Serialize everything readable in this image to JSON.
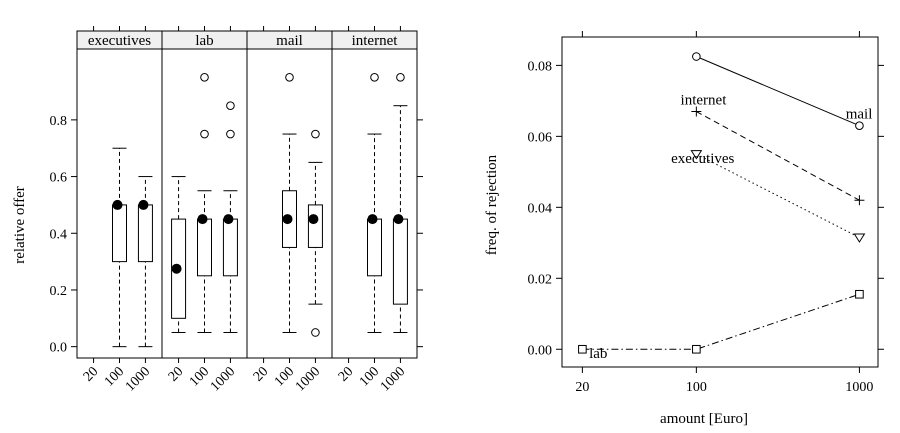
{
  "chart_data": [
    {
      "type": "box",
      "ylabel": "relative offer",
      "xlabel": "",
      "ylim": [
        -0.04,
        1.05
      ],
      "yticks": [
        0.0,
        0.2,
        0.4,
        0.6,
        0.8
      ],
      "ytick_labels": [
        "0.0",
        "0.2",
        "0.4",
        "0.6",
        "0.8"
      ],
      "categories": [
        "20",
        "100",
        "1000"
      ],
      "panels": [
        {
          "name": "executives",
          "boxes": [
            {
              "category": "100",
              "lower_whisker": 0.0,
              "q1": 0.3,
              "median": 0.5,
              "q3": 0.5,
              "upper_whisker": 0.7,
              "outliers": []
            },
            {
              "category": "1000",
              "lower_whisker": 0.0,
              "q1": 0.3,
              "median": 0.5,
              "q3": 0.5,
              "upper_whisker": 0.6,
              "outliers": []
            }
          ]
        },
        {
          "name": "lab",
          "boxes": [
            {
              "category": "20",
              "lower_whisker": 0.05,
              "q1": 0.1,
              "median": 0.275,
              "q3": 0.45,
              "upper_whisker": 0.6,
              "outliers": []
            },
            {
              "category": "100",
              "lower_whisker": 0.05,
              "q1": 0.25,
              "median": 0.45,
              "q3": 0.45,
              "upper_whisker": 0.55,
              "outliers": [
                0.75,
                0.95
              ]
            },
            {
              "category": "1000",
              "lower_whisker": 0.05,
              "q1": 0.25,
              "median": 0.45,
              "q3": 0.45,
              "upper_whisker": 0.55,
              "outliers": [
                0.75,
                0.85
              ]
            }
          ]
        },
        {
          "name": "mail",
          "boxes": [
            {
              "category": "100",
              "lower_whisker": 0.05,
              "q1": 0.35,
              "median": 0.45,
              "q3": 0.55,
              "upper_whisker": 0.75,
              "outliers": [
                0.95
              ]
            },
            {
              "category": "1000",
              "lower_whisker": 0.15,
              "q1": 0.35,
              "median": 0.45,
              "q3": 0.5,
              "upper_whisker": 0.65,
              "outliers": [
                0.05,
                0.75
              ]
            }
          ]
        },
        {
          "name": "internet",
          "boxes": [
            {
              "category": "100",
              "lower_whisker": 0.05,
              "q1": 0.25,
              "median": 0.45,
              "q3": 0.45,
              "upper_whisker": 0.75,
              "outliers": [
                0.95
              ]
            },
            {
              "category": "1000",
              "lower_whisker": 0.05,
              "q1": 0.15,
              "median": 0.45,
              "q3": 0.45,
              "upper_whisker": 0.85,
              "outliers": [
                0.95
              ]
            }
          ]
        }
      ]
    },
    {
      "type": "line",
      "xlabel": "amount [Euro]",
      "ylabel": "freq. of rejection",
      "x_scale": "log",
      "xlim": [
        15,
        1300
      ],
      "ylim": [
        -0.005,
        0.088
      ],
      "xticks": [
        20,
        100,
        1000
      ],
      "xtick_labels": [
        "20",
        "100",
        "1000"
      ],
      "yticks": [
        0.0,
        0.02,
        0.04,
        0.06,
        0.08
      ],
      "ytick_labels": [
        "0.00",
        "0.02",
        "0.04",
        "0.06",
        "0.08"
      ],
      "series": [
        {
          "name": "mail",
          "marker": "circle",
          "line": "solid",
          "x": [
            100,
            1000
          ],
          "y": [
            0.0825,
            0.063
          ],
          "label_at": [
            1000,
            0.065
          ]
        },
        {
          "name": "internet",
          "marker": "plus",
          "line": "dashed",
          "x": [
            100,
            1000
          ],
          "y": [
            0.067,
            0.042
          ],
          "label_at": [
            80,
            0.069
          ]
        },
        {
          "name": "executives",
          "marker": "triangle-down",
          "line": "dotted",
          "x": [
            100,
            1000
          ],
          "y": [
            0.055,
            0.0315
          ],
          "label_at": [
            70,
            0.0525
          ]
        },
        {
          "name": "lab",
          "marker": "square",
          "line": "dashdot",
          "x": [
            20,
            100,
            1000
          ],
          "y": [
            0.0,
            0.0,
            0.0155
          ],
          "label_at": [
            22,
            -0.0025
          ]
        }
      ]
    }
  ]
}
